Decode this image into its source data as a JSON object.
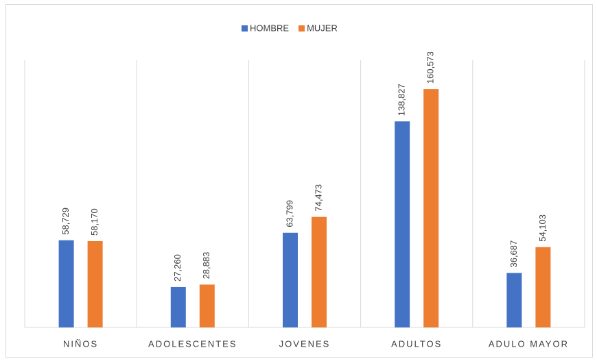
{
  "chart_data": {
    "type": "bar",
    "categories": [
      "NIÑOS",
      "ADOLESCENTES",
      "JOVENES",
      "ADULTOS",
      "ADULO MAYOR"
    ],
    "series": [
      {
        "name": "HOMBRE",
        "color": "#4472c4",
        "values": [
          58729,
          27260,
          63799,
          138827,
          36687
        ],
        "value_labels": [
          "58,729",
          "27,260",
          "63,799",
          "138,827",
          "36,687"
        ]
      },
      {
        "name": "MUJER",
        "color": "#ed7d31",
        "values": [
          58170,
          28883,
          74473,
          160573,
          54103
        ],
        "value_labels": [
          "58,170",
          "28,883",
          "74,473",
          "160,573",
          "54,103"
        ]
      }
    ],
    "ylim": [
      0,
      180000
    ],
    "legend": "top"
  }
}
